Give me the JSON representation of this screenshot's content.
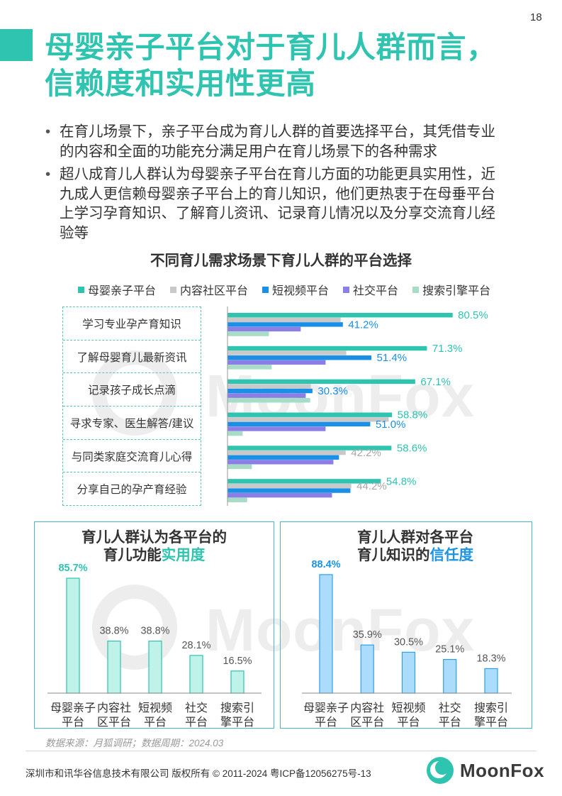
{
  "page_number": "18",
  "title": "母婴亲子平台对于育儿人群而言，\n信赖度和实用性更高",
  "bullet_symbol": "•",
  "bullets": [
    "在育儿场景下，亲子平台成为育儿人群的首要选择平台，其凭借专业\n的内容和全面的功能充分满足用户在育儿场景下的各种需求",
    "超八成育儿人群认为母婴亲子平台在育儿方面的功能更具实用性，近\n九成人更信赖母婴亲子平台上的育儿知识，他们更热衷于在母垂平台\n上学习孕育知识、了解育儿资讯、记录育儿情况以及分享交流育儿经\n验等"
  ],
  "colors": {
    "accent": "#2ec4b0",
    "blue_accent": "#1c93e6",
    "text": "#333333",
    "muted": "#9a9a9a",
    "box_border": "#47b6c6"
  },
  "watermark": "MoonFox",
  "chart_data": [
    {
      "type": "bar",
      "orientation": "horizontal",
      "title": "不同育儿需求场景下育儿人群的平台选择",
      "legend_position": "top",
      "value_suffix": "%",
      "xlim": [
        0,
        100
      ],
      "categories": [
        "学习专业孕产育知识",
        "了解母婴育儿最新资讯",
        "记录孩子成长点滴",
        "寻求专家、医生解答/建议",
        "与同类家庭交流育儿心得",
        "分享自己的孕产育经验"
      ],
      "series": [
        {
          "name": "母婴亲子平台",
          "color": "#2ec4b0",
          "label_color": "#2ec4b0",
          "values": [
            80.5,
            71.3,
            67.1,
            58.8,
            58.6,
            54.8
          ],
          "labels_shown": [
            true,
            true,
            true,
            true,
            true,
            true
          ]
        },
        {
          "name": "内容社区平台",
          "color": "#c9c9c9",
          "label_color": "#a6a6a6",
          "values": [
            40.4,
            42.4,
            29.7,
            57.6,
            42.2,
            44.2
          ],
          "labels_shown": [
            false,
            false,
            false,
            false,
            true,
            true
          ]
        },
        {
          "name": "短视频平台",
          "color": "#1a8fe6",
          "label_color": "#1a8fe6",
          "values": [
            41.2,
            51.4,
            30.3,
            51.0,
            39.8,
            43.9
          ],
          "labels_shown": [
            true,
            true,
            true,
            true,
            false,
            false
          ]
        },
        {
          "name": "社交平台",
          "color": "#8b7fe6",
          "label_color": "#8b7fe6",
          "values": [
            26.1,
            35.0,
            27.9,
            35.0,
            37.8,
            37.3
          ],
          "labels_shown": [
            false,
            false,
            false,
            false,
            false,
            false
          ]
        },
        {
          "name": "搜索引擎平台",
          "color": "#a7dcc6",
          "label_color": "#a7dcc6",
          "values": [
            14.7,
            15.7,
            29.5,
            5.3,
            8.6,
            6.9
          ],
          "labels_shown": [
            false,
            false,
            false,
            false,
            false,
            false
          ]
        }
      ]
    },
    {
      "type": "bar",
      "orientation": "vertical",
      "title_line1": "育儿人群认为各平台的",
      "title_line2": "育儿功能",
      "title_highlight": "实用度",
      "value_suffix": "%",
      "ylim": [
        0,
        100
      ],
      "color": "#2ec4b0",
      "fill": "#bff3ea",
      "highlight_index": 0,
      "categories": [
        "母婴亲子\n平台",
        "内容社\n区平台",
        "短视频\n平台",
        "社交\n平台",
        "搜索引\n擎平台"
      ],
      "values": [
        85.7,
        38.8,
        38.8,
        28.1,
        16.5
      ]
    },
    {
      "type": "bar",
      "orientation": "vertical",
      "title_line1": "育儿人群对各平台",
      "title_line2": "育儿知识的",
      "title_highlight": "信任度",
      "value_suffix": "%",
      "ylim": [
        0,
        100
      ],
      "color": "#2f9fe8",
      "fill": "#acdcfb",
      "highlight_color": "#1c93e6",
      "highlight_index": 0,
      "categories": [
        "母婴亲子\n平台",
        "内容社\n区平台",
        "短视频\n平台",
        "社交\n平台",
        "搜索引\n擎平台"
      ],
      "values": [
        88.4,
        35.9,
        30.5,
        25.1,
        18.3
      ]
    }
  ],
  "source_note": "数据来源：月狐调研；数据周期：2024.03",
  "footer": {
    "copyright": "深圳市和讯华谷信息技术有限公司 版权所有 © 2011-2024 粤ICP备12056275号-13",
    "logo_text": "MoonFox"
  }
}
